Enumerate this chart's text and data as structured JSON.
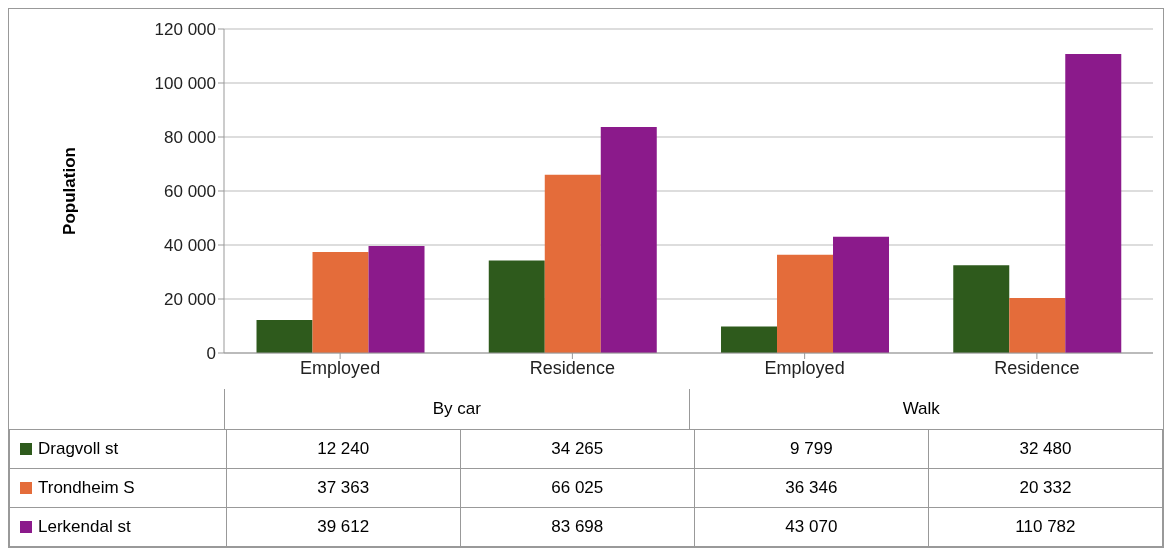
{
  "chart_data": {
    "type": "bar",
    "ylabel": "Population",
    "categories": [
      "Employed",
      "Residence",
      "Employed",
      "Residence"
    ],
    "annotations": [
      "By car",
      "Walk"
    ],
    "series": [
      {
        "name": "Dragvoll st",
        "color": "#2e5a1c",
        "values": [
          12240,
          34265,
          9799,
          32480
        ],
        "value_labels": [
          "12 240",
          "34 265",
          "9 799",
          "32 480"
        ]
      },
      {
        "name": "Trondheim S",
        "color": "#e46c3a",
        "values": [
          37363,
          66025,
          36346,
          20332
        ],
        "value_labels": [
          "37 363",
          "66 025",
          "36 346",
          "20 332"
        ]
      },
      {
        "name": "Lerkendal st",
        "color": "#8b1a8b",
        "values": [
          39612,
          83698,
          43070,
          110782
        ],
        "value_labels": [
          "39 612",
          "83 698",
          "43 070",
          "110 782"
        ]
      }
    ],
    "ylim": [
      0,
      120000
    ],
    "yticks": [
      {
        "value": 0,
        "label": "0"
      },
      {
        "value": 20000,
        "label": "20 000"
      },
      {
        "value": 40000,
        "label": "40 000"
      },
      {
        "value": 60000,
        "label": "60 000"
      },
      {
        "value": 80000,
        "label": "80 000"
      },
      {
        "value": 100000,
        "label": "100 000"
      },
      {
        "value": 120000,
        "label": "120 000"
      }
    ],
    "grid": "y",
    "legend": "bottom left"
  }
}
